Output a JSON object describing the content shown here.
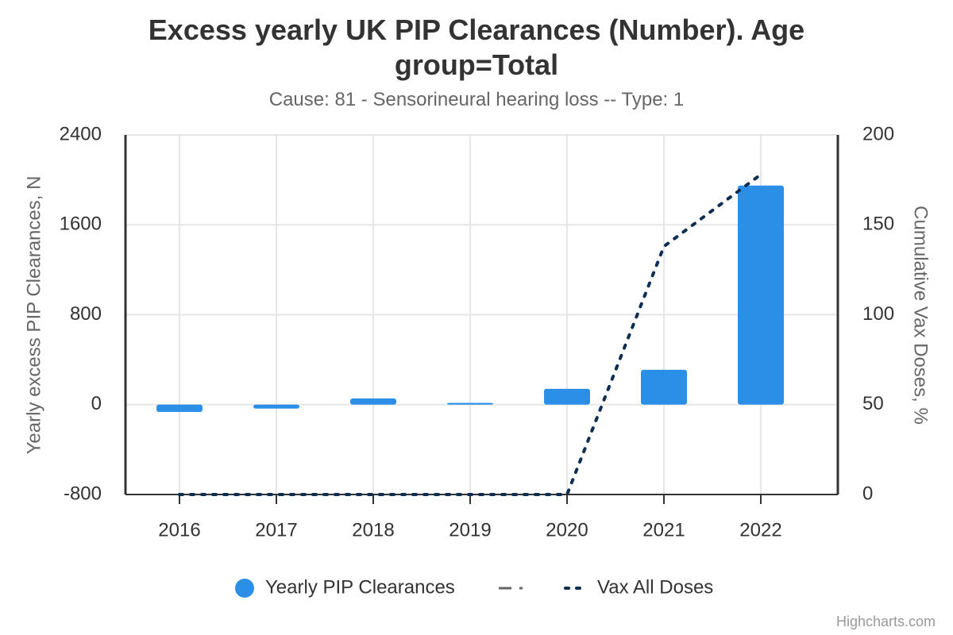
{
  "chart_data": {
    "type": "bar",
    "title": "Excess yearly UK PIP Clearances (Number). Age group=Total",
    "subtitle": "Cause: 81 - Sensorineural hearing loss -- Type: 1",
    "y_label": "Yearly excess PIP Clearances, N",
    "y2_label": "Cumulative Vax Doses, %",
    "credits": "Highcharts.com",
    "categories": [
      "2016",
      "2017",
      "2018",
      "2019",
      "2020",
      "2021",
      "2022"
    ],
    "series": [
      {
        "name": "Yearly PIP Clearances",
        "type": "bar",
        "color": "#2b8fe8",
        "values": [
          -65,
          -35,
          55,
          15,
          140,
          310,
          1950
        ]
      },
      {
        "name": "Vax All Doses",
        "type": "line",
        "axis": "y2",
        "color": "#0d2e52",
        "values": [
          0,
          0,
          0,
          0,
          0,
          138,
          178
        ]
      }
    ],
    "ylim": [
      -800,
      2400
    ],
    "yticks": [
      -800,
      0,
      800,
      1600,
      2400
    ],
    "y2lim": [
      0,
      200
    ],
    "y2ticks": [
      0,
      50,
      100,
      150,
      200
    ],
    "grid": true,
    "legend": "bottom"
  }
}
